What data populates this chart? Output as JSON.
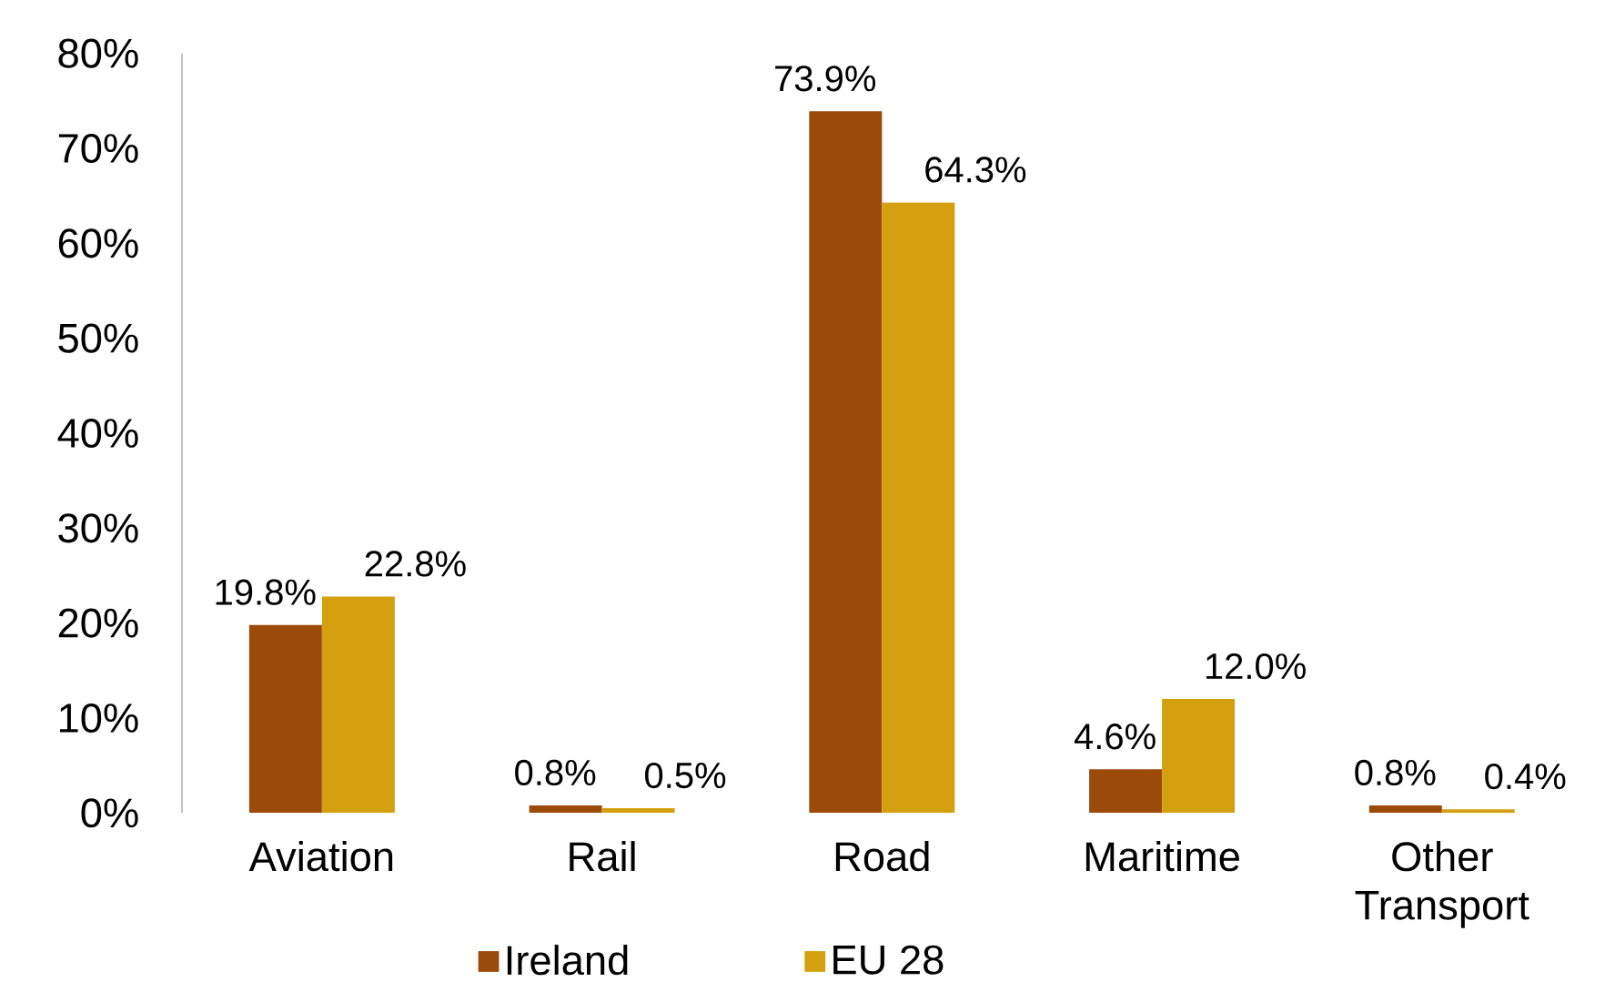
{
  "chart_data": {
    "type": "bar",
    "categories": [
      "Aviation",
      "Rail",
      "Road",
      "Maritime",
      "Other Transport"
    ],
    "series": [
      {
        "name": "Ireland",
        "color": "#9c4a0a",
        "values": [
          19.8,
          0.8,
          73.9,
          4.6,
          0.8
        ],
        "value_labels": [
          "19.8%",
          "0.8%",
          "73.9%",
          "4.6%",
          "0.8%"
        ]
      },
      {
        "name": "EU 28",
        "color": "#d4a010",
        "values": [
          22.8,
          0.5,
          64.3,
          12.0,
          0.4
        ],
        "value_labels": [
          "22.8%",
          "0.5%",
          "64.3%",
          "12.0%",
          "0.4%"
        ]
      }
    ],
    "ylim": [
      0,
      80
    ],
    "yticks": [
      {
        "value": 0,
        "label": "0%"
      },
      {
        "value": 10,
        "label": "10%"
      },
      {
        "value": 20,
        "label": "20%"
      },
      {
        "value": 30,
        "label": "30%"
      },
      {
        "value": 40,
        "label": "40%"
      },
      {
        "value": 50,
        "label": "50%"
      },
      {
        "value": 60,
        "label": "60%"
      },
      {
        "value": 70,
        "label": "70%"
      },
      {
        "value": 80,
        "label": "80%"
      }
    ],
    "legend": "bottom"
  }
}
